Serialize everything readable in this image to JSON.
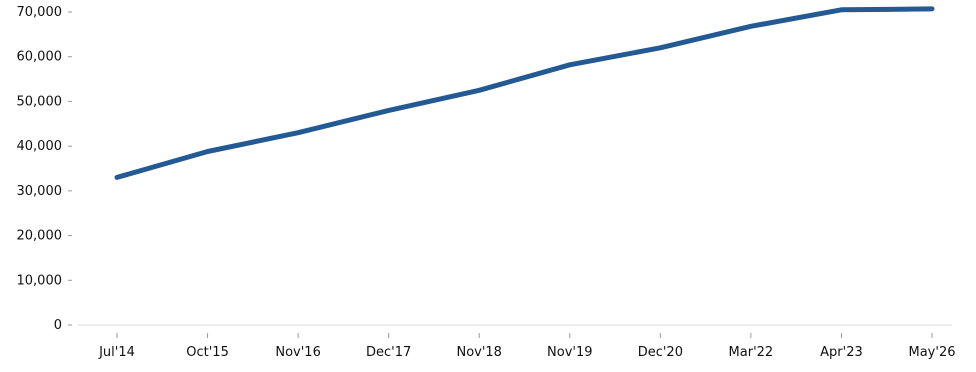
{
  "chart_data": {
    "type": "line",
    "categories": [
      "Jul'14",
      "Oct'15",
      "Nov'16",
      "Dec'17",
      "Nov'18",
      "Nov'19",
      "Dec'20",
      "Mar'22",
      "Apr'23",
      "May'26"
    ],
    "series": [
      {
        "values": [
          33000,
          38800,
          43000,
          48000,
          52500,
          58200,
          62000,
          66800,
          70500,
          70700
        ]
      }
    ],
    "title": "",
    "xlabel": "",
    "ylabel": "",
    "ylim": [
      0,
      70000
    ],
    "y_ticks": [
      "0",
      "10,000",
      "20,000",
      "30,000",
      "40,000",
      "50,000",
      "60,000",
      "70,000"
    ],
    "grid": false,
    "legend": "none",
    "colors": {
      "line": "#245a93",
      "axis": "#9a9a9a",
      "text": "#111111"
    }
  }
}
